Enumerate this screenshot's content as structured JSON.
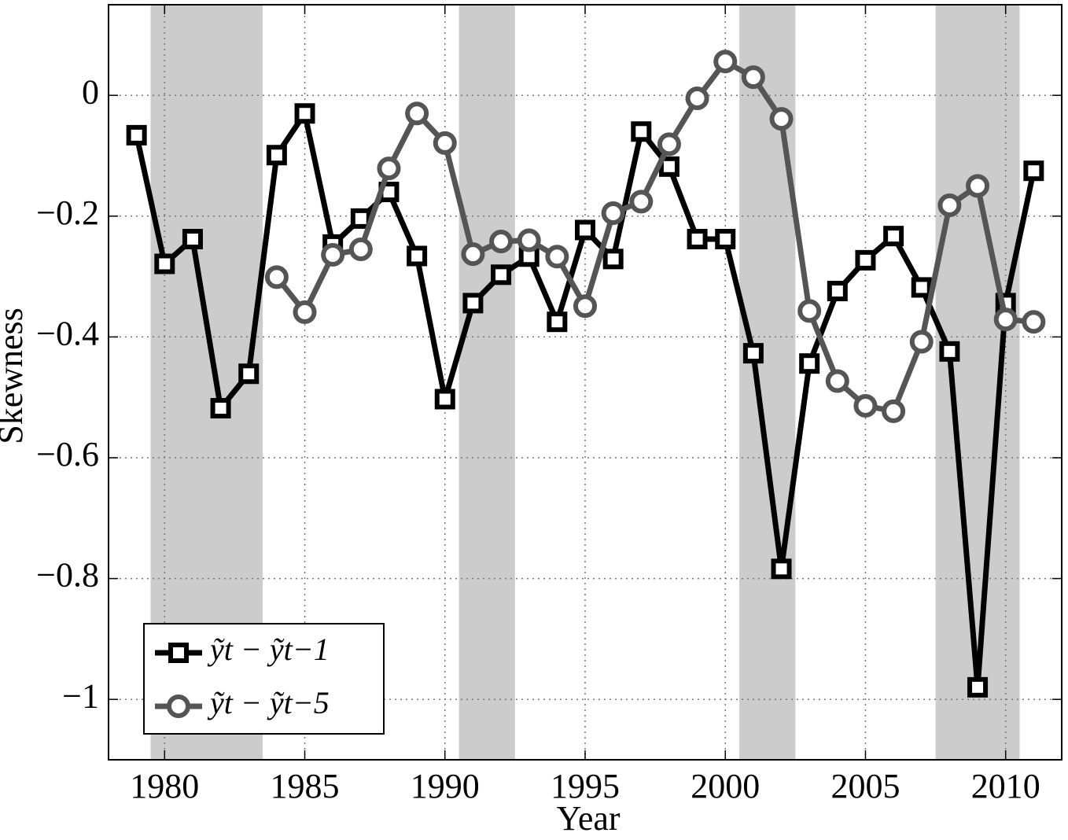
{
  "chart_data": {
    "type": "line",
    "x_label": "Year",
    "y_label": "Skewness",
    "x": [
      1979,
      1980,
      1981,
      1982,
      1983,
      1984,
      1985,
      1986,
      1987,
      1988,
      1989,
      1990,
      1991,
      1992,
      1993,
      1994,
      1995,
      1996,
      1997,
      1998,
      1999,
      2000,
      2001,
      2002,
      2003,
      2004,
      2005,
      2006,
      2007,
      2008,
      2009,
      2010,
      2011
    ],
    "series": [
      {
        "name": "ỹt − ỹt−1",
        "color": "#000000",
        "marker": "square",
        "values": [
          -0.066,
          -0.279,
          -0.238,
          -0.518,
          -0.461,
          -0.099,
          -0.03,
          -0.247,
          -0.204,
          -0.16,
          -0.266,
          -0.503,
          -0.344,
          -0.297,
          -0.267,
          -0.375,
          -0.223,
          -0.271,
          -0.06,
          -0.118,
          -0.238,
          -0.238,
          -0.427,
          -0.784,
          -0.444,
          -0.324,
          -0.273,
          -0.233,
          -0.318,
          -0.424,
          -0.98,
          -0.344,
          -0.125
        ]
      },
      {
        "name": "ỹt − ỹt−5",
        "color": "#555555",
        "marker": "circle",
        "values": [
          null,
          null,
          null,
          null,
          null,
          -0.301,
          -0.359,
          -0.264,
          -0.255,
          -0.121,
          -0.03,
          -0.079,
          -0.263,
          -0.242,
          -0.24,
          -0.267,
          -0.349,
          -0.195,
          -0.176,
          -0.081,
          -0.005,
          0.056,
          0.03,
          -0.039,
          -0.357,
          -0.473,
          -0.514,
          -0.523,
          -0.408,
          -0.182,
          -0.15,
          -0.371,
          -0.375
        ]
      }
    ],
    "shaded_regions": [
      [
        1979.5,
        1983.5
      ],
      [
        1990.5,
        1992.5
      ],
      [
        2000.5,
        2002.5
      ],
      [
        2007.5,
        2010.5
      ]
    ],
    "shade_color": "#cccccc",
    "xlim": [
      1978,
      2012
    ],
    "xticks": [
      1980,
      1985,
      1990,
      1995,
      2000,
      2005,
      2010
    ],
    "ylim": [
      -1.1,
      0.15
    ],
    "yticks": [
      {
        "value": -1,
        "label": "−1"
      },
      {
        "value": -0.8,
        "label": "−0.8"
      },
      {
        "value": -0.6,
        "label": "−0.6"
      },
      {
        "value": -0.4,
        "label": "−0.4"
      },
      {
        "value": -0.2,
        "label": "−0.2"
      },
      0
    ],
    "grid": true,
    "legend": "lower left"
  }
}
